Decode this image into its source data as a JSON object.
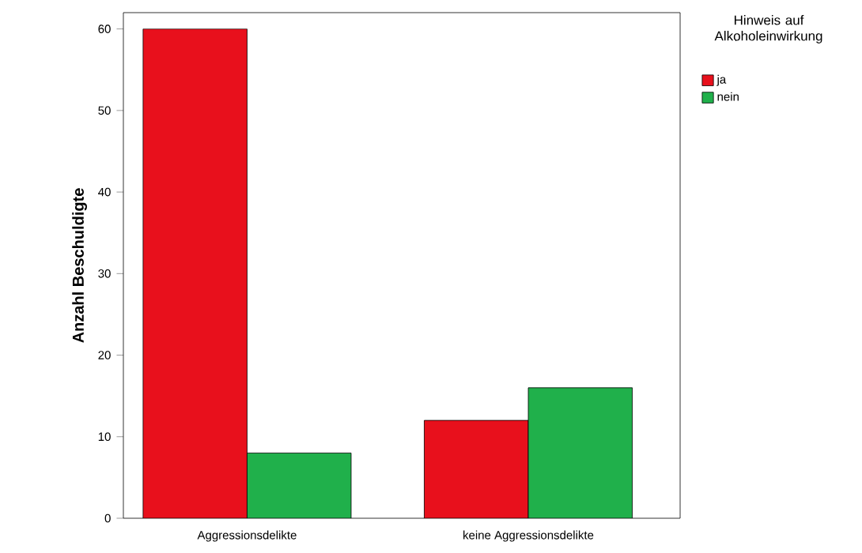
{
  "chart_data": {
    "type": "bar",
    "ylabel": "Anzahl Beschuldigte",
    "legend_title": "Hinweis auf Alkoholeinwirkung",
    "categories": [
      "Aggressionsdelikte",
      "keine Aggressionsdelikte"
    ],
    "series": [
      {
        "name": "ja",
        "color": "#e8101c",
        "values": [
          60,
          12
        ]
      },
      {
        "name": "nein",
        "color": "#20b04b",
        "values": [
          8,
          16
        ]
      }
    ],
    "ylim": [
      0,
      62
    ],
    "yticks": [
      0,
      10,
      20,
      30,
      40,
      50,
      60
    ],
    "grid": false,
    "legend": "top right"
  }
}
